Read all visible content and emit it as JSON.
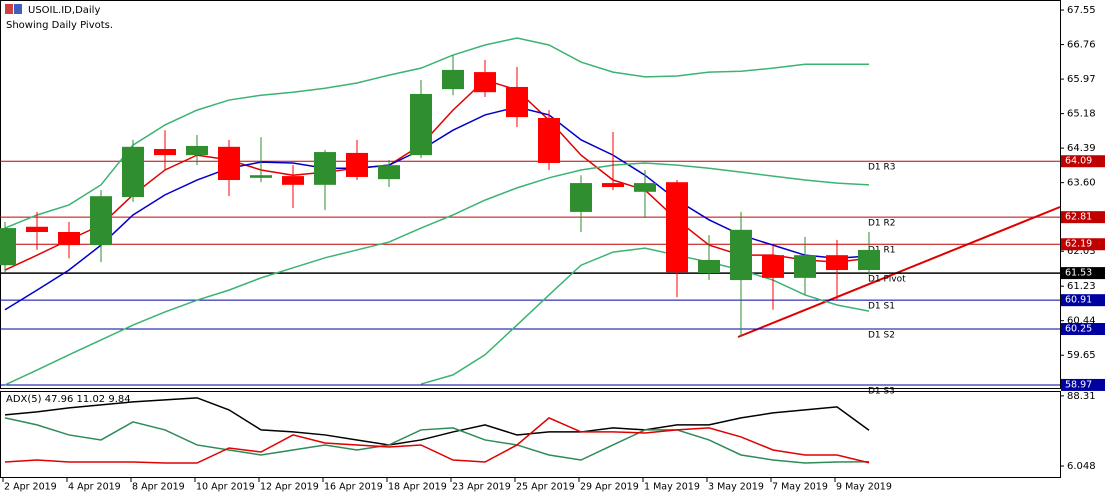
{
  "chart_data": [
    {
      "type": "candlestick",
      "title": "USOIL.ID,Daily",
      "subtitle": "Showing Daily Pivots.",
      "open": [
        61.71,
        62.59,
        62.47,
        62.17,
        63.27,
        64.37,
        64.23,
        64.42,
        63.71,
        63.75,
        63.55,
        64.28,
        63.68,
        64.23,
        65.74,
        66.13,
        65.79,
        65.08,
        62.93,
        63.59,
        63.39,
        63.61,
        61.53,
        61.37,
        61.94,
        61.42,
        61.94,
        61.6
      ],
      "high": [
        62.7,
        62.93,
        62.7,
        63.43,
        64.58,
        64.8,
        64.69,
        64.58,
        64.64,
        64.0,
        64.35,
        64.58,
        64.12,
        65.95,
        66.52,
        66.41,
        66.25,
        65.26,
        63.77,
        64.76,
        63.89,
        63.66,
        62.4,
        62.93,
        62.17,
        62.36,
        62.29,
        62.47
      ],
      "low": [
        61.55,
        62.06,
        61.87,
        61.78,
        63.16,
        63.89,
        64.0,
        63.29,
        63.61,
        63.02,
        62.97,
        63.66,
        63.5,
        64.16,
        65.6,
        65.56,
        64.87,
        63.89,
        62.47,
        63.43,
        62.79,
        60.98,
        61.37,
        60.07,
        60.69,
        61.03,
        60.91,
        61.49
      ],
      "close": [
        62.56,
        62.47,
        62.17,
        63.29,
        64.42,
        64.23,
        64.44,
        63.66,
        63.77,
        63.55,
        64.3,
        63.73,
        64.0,
        65.63,
        66.18,
        65.67,
        65.1,
        64.05,
        63.59,
        63.5,
        63.59,
        61.55,
        61.83,
        62.52,
        61.42,
        61.94,
        61.6,
        62.06
      ],
      "up_color": "#2f8f2f",
      "down_color": "#ff0000",
      "series": [
        {
          "color": "#e00000",
          "values": [
            61.6,
            61.94,
            62.29,
            62.63,
            63.32,
            63.89,
            64.23,
            64.12,
            63.89,
            63.77,
            63.84,
            63.93,
            64.0,
            64.46,
            65.26,
            65.95,
            65.72,
            65.03,
            64.23,
            63.66,
            63.43,
            62.75,
            62.17,
            61.94,
            61.94,
            61.83,
            61.78,
            61.87
          ]
        },
        {
          "color": "#0000c8",
          "values": [
            60.69,
            61.14,
            61.6,
            62.17,
            62.86,
            63.32,
            63.66,
            63.93,
            64.07,
            64.05,
            63.93,
            63.93,
            64.0,
            64.35,
            64.8,
            65.15,
            65.33,
            65.15,
            64.58,
            64.23,
            63.77,
            63.2,
            62.75,
            62.4,
            62.17,
            61.94,
            61.87,
            61.92
          ]
        },
        {
          "color": "#3cb371",
          "values": [
            62.56,
            62.86,
            63.09,
            63.55,
            64.46,
            64.92,
            65.26,
            65.49,
            65.6,
            65.67,
            65.76,
            65.88,
            66.06,
            66.22,
            66.52,
            66.75,
            66.91,
            66.75,
            66.36,
            66.13,
            66.02,
            66.04,
            66.13,
            66.15,
            66.22,
            66.31,
            66.31,
            66.31
          ]
        },
        {
          "color": "#3cb371",
          "values": [
            58.97,
            59.31,
            59.66,
            60.0,
            60.34,
            60.64,
            60.91,
            61.14,
            61.42,
            61.65,
            61.88,
            62.06,
            62.24,
            62.56,
            62.86,
            63.2,
            63.48,
            63.71,
            63.89,
            64.0,
            64.05,
            64.0,
            63.93,
            63.84,
            63.75,
            63.66,
            63.59,
            63.55
          ]
        },
        {
          "color": "#3cb371",
          "values": [
            null,
            null,
            null,
            null,
            null,
            null,
            null,
            null,
            null,
            null,
            null,
            null,
            null,
            58.99,
            59.2,
            59.66,
            60.34,
            61.03,
            61.71,
            62.01,
            62.1,
            61.94,
            61.78,
            61.6,
            61.37,
            61.03,
            60.8,
            60.66
          ]
        }
      ],
      "pivots": [
        {
          "label": "D1 R3",
          "value": 64.09,
          "color": "#c00000"
        },
        {
          "label": "D1 R2",
          "value": 62.81,
          "color": "#c00000"
        },
        {
          "label": "D1 R1",
          "value": 62.19,
          "color": "#c00000"
        },
        {
          "label": "D1 Pivot",
          "value": 61.53,
          "color": "#000000"
        },
        {
          "label": "D1 S1",
          "value": 60.91,
          "color": "#0000a0"
        },
        {
          "label": "D1 S2",
          "value": 60.25,
          "color": "#0000a0"
        },
        {
          "label": "D1 S3",
          "value": 58.97,
          "color": "#0000a0"
        }
      ],
      "ylim": [
        58.9,
        67.78
      ],
      "yticks": [
        67.55,
        66.76,
        65.97,
        65.18,
        64.39,
        {
          "value": 63.6,
          "label": "63.60"
        },
        62.03,
        61.23,
        60.44,
        59.65
      ]
    },
    {
      "type": "line",
      "title": "ADX(5) 47.96 11.02 9.84",
      "categories": [
        "2 Apr 2019",
        null,
        "4 Apr 2019",
        null,
        "8 Apr 2019",
        null,
        "10 Apr 2019",
        null,
        "12 Apr 2019",
        null,
        "16 Apr 2019",
        null,
        "18 Apr 2019",
        null,
        "23 Apr 2019",
        null,
        "25 Apr 2019",
        null,
        "29 Apr 2019",
        null,
        "1 May 2019",
        null,
        "3 May 2019",
        null,
        "7 May 2019",
        null,
        "9 May 2019",
        null
      ],
      "series": [
        {
          "color": "#000000",
          "values": [
            65.98,
            69.51,
            74.21,
            77.74,
            81.26,
            83.61,
            85.96,
            71.86,
            48.36,
            46.01,
            42.49,
            36.61,
            30.74,
            36.61,
            46.01,
            54.24,
            42.49,
            46.01,
            46.01,
            50.71,
            48.36,
            54.24,
            54.24,
            62.46,
            68.34,
            71.86,
            75.39,
            47.96
          ]
        },
        {
          "color": "#2e8b57",
          "values": [
            62.46,
            54.24,
            42.49,
            36.61,
            57.76,
            48.36,
            30.74,
            24.86,
            18.99,
            24.86,
            30.74,
            24.86,
            30.74,
            48.36,
            50.71,
            36.61,
            30.74,
            18.99,
            13.11,
            30.74,
            48.36,
            48.36,
            36.61,
            18.99,
            13.11,
            9.59,
            10.76,
            11.02
          ]
        },
        {
          "color": "#e00000",
          "values": [
            10.76,
            13.11,
            10.76,
            10.76,
            10.76,
            9.59,
            9.59,
            27.21,
            22.51,
            42.49,
            33.09,
            30.74,
            28.39,
            30.74,
            13.11,
            10.76,
            30.74,
            62.46,
            46.01,
            46.01,
            44.83,
            48.36,
            50.71,
            40.13,
            24.86,
            18.99,
            18.99,
            9.84
          ]
        }
      ],
      "ylim": [
        -8,
        94
      ],
      "yticks": [
        88.31,
        6.048
      ]
    }
  ]
}
